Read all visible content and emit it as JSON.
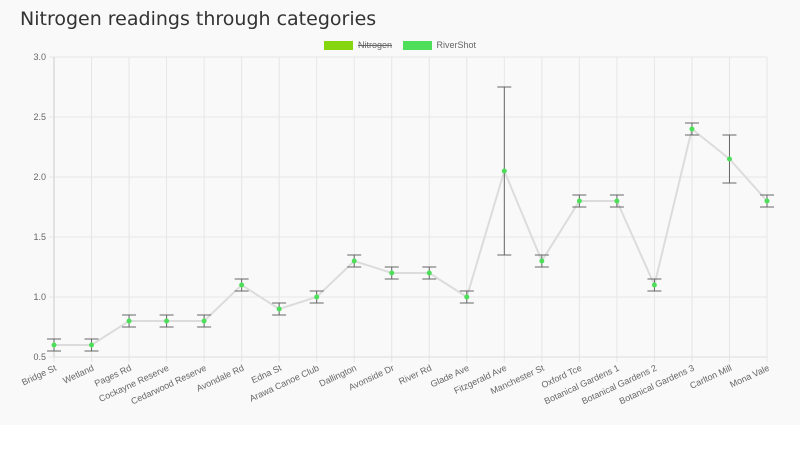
{
  "header": {
    "title": "Nitrogen readings through categories"
  },
  "legend": [
    {
      "label": "Nitrogen",
      "color": "#86d60f",
      "hidden": true
    },
    {
      "label": "RiverShot",
      "color": "#4ddf5a",
      "hidden": false
    }
  ],
  "chart_data": {
    "type": "line",
    "title": "Nitrogen readings through categories",
    "xlabel": "",
    "ylabel": "",
    "ylim": [
      0.5,
      3.0
    ],
    "yticks": [
      "0.5",
      "1.0",
      "1.5",
      "2.0",
      "2.5",
      "3.0"
    ],
    "ytick_values": [
      0.5,
      1.0,
      1.5,
      2.0,
      2.5,
      3.0
    ],
    "grid": true,
    "legend_position": "top-center",
    "categories": [
      "Bridge St",
      "Wetland",
      "Pages Rd",
      "Cockayne Reserve",
      "Cedarwood Reserve",
      "Avondale Rd",
      "Edna St",
      "Arawa Canoe Club",
      "Dallington",
      "Avonside Dr",
      "River Rd",
      "Glade Ave",
      "Fitzgerald Ave",
      "Manchester St",
      "Oxford Tce",
      "Botanical Gardens 1",
      "Botanical Gardens 2",
      "Botanical Gardens 3",
      "Carlton Mill",
      "Mona Vale"
    ],
    "series": [
      {
        "name": "RiverShot",
        "color": "#4ddf5a",
        "values": [
          0.6,
          0.6,
          0.8,
          0.8,
          0.8,
          1.1,
          0.9,
          1.0,
          1.3,
          1.2,
          1.2,
          1.0,
          2.05,
          1.3,
          1.8,
          1.8,
          1.1,
          2.4,
          2.15,
          1.8
        ],
        "error_low": [
          0.55,
          0.55,
          0.75,
          0.75,
          0.75,
          1.05,
          0.85,
          0.95,
          1.25,
          1.15,
          1.15,
          0.95,
          1.35,
          1.25,
          1.75,
          1.75,
          1.05,
          2.35,
          1.95,
          1.75
        ],
        "error_high": [
          0.65,
          0.65,
          0.85,
          0.85,
          0.85,
          1.15,
          0.95,
          1.05,
          1.35,
          1.25,
          1.25,
          1.05,
          2.75,
          1.35,
          1.85,
          1.85,
          1.15,
          2.45,
          2.35,
          1.85
        ]
      }
    ]
  }
}
